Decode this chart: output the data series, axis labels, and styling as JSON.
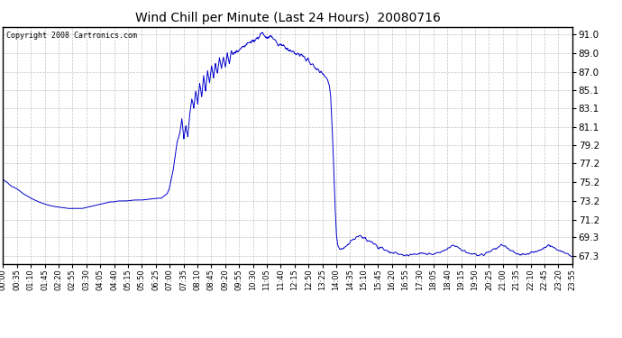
{
  "title": "Wind Chill per Minute (Last 24 Hours)  20080716",
  "copyright_text": "Copyright 2008 Cartronics.com",
  "line_color": "#0000cc",
  "background_color": "#ffffff",
  "grid_color": "#aaaaaa",
  "yticks": [
    67.3,
    69.3,
    71.2,
    73.2,
    75.2,
    77.2,
    79.2,
    81.1,
    83.1,
    85.1,
    87.0,
    89.0,
    91.0
  ],
  "ymin": 66.5,
  "ymax": 91.8,
  "xtick_labels": [
    "00:00",
    "00:35",
    "01:10",
    "01:45",
    "02:20",
    "02:55",
    "03:30",
    "04:05",
    "04:40",
    "05:15",
    "05:50",
    "06:25",
    "07:00",
    "07:35",
    "08:10",
    "08:45",
    "09:20",
    "09:55",
    "10:30",
    "11:05",
    "11:40",
    "12:15",
    "12:50",
    "13:25",
    "14:00",
    "14:35",
    "15:10",
    "15:45",
    "16:20",
    "16:55",
    "17:30",
    "18:05",
    "18:40",
    "19:15",
    "19:50",
    "20:25",
    "21:00",
    "21:35",
    "22:10",
    "22:45",
    "23:20",
    "23:55"
  ],
  "key_points": [
    [
      0,
      75.5
    ],
    [
      10,
      75.2
    ],
    [
      20,
      74.8
    ],
    [
      35,
      74.5
    ],
    [
      50,
      74.0
    ],
    [
      70,
      73.5
    ],
    [
      90,
      73.1
    ],
    [
      110,
      72.8
    ],
    [
      130,
      72.6
    ],
    [
      150,
      72.5
    ],
    [
      165,
      72.4
    ],
    [
      180,
      72.4
    ],
    [
      200,
      72.4
    ],
    [
      210,
      72.5
    ],
    [
      220,
      72.6
    ],
    [
      230,
      72.7
    ],
    [
      240,
      72.8
    ],
    [
      250,
      72.9
    ],
    [
      260,
      73.0
    ],
    [
      270,
      73.1
    ],
    [
      280,
      73.1
    ],
    [
      290,
      73.2
    ],
    [
      310,
      73.2
    ],
    [
      330,
      73.3
    ],
    [
      350,
      73.3
    ],
    [
      370,
      73.4
    ],
    [
      390,
      73.5
    ],
    [
      400,
      73.5
    ],
    [
      415,
      74.0
    ],
    [
      420,
      74.5
    ],
    [
      430,
      76.5
    ],
    [
      440,
      79.5
    ],
    [
      447,
      80.5
    ],
    [
      452,
      82.0
    ],
    [
      457,
      79.8
    ],
    [
      462,
      81.5
    ],
    [
      467,
      80.0
    ],
    [
      472,
      82.5
    ],
    [
      477,
      84.0
    ],
    [
      482,
      83.0
    ],
    [
      487,
      85.0
    ],
    [
      492,
      83.5
    ],
    [
      497,
      86.0
    ],
    [
      502,
      84.5
    ],
    [
      507,
      86.5
    ],
    [
      512,
      85.0
    ],
    [
      517,
      87.0
    ],
    [
      522,
      85.8
    ],
    [
      527,
      87.5
    ],
    [
      532,
      86.5
    ],
    [
      537,
      88.0
    ],
    [
      542,
      87.0
    ],
    [
      547,
      88.5
    ],
    [
      552,
      87.2
    ],
    [
      557,
      88.8
    ],
    [
      562,
      87.5
    ],
    [
      567,
      89.0
    ],
    [
      572,
      88.0
    ],
    [
      577,
      89.2
    ],
    [
      585,
      89.0
    ],
    [
      600,
      89.5
    ],
    [
      615,
      90.0
    ],
    [
      630,
      90.3
    ],
    [
      645,
      90.6
    ],
    [
      655,
      91.2
    ],
    [
      660,
      91.0
    ],
    [
      670,
      90.8
    ],
    [
      680,
      90.6
    ],
    [
      690,
      90.3
    ],
    [
      700,
      90.0
    ],
    [
      710,
      89.8
    ],
    [
      720,
      89.5
    ],
    [
      730,
      89.2
    ],
    [
      740,
      89.0
    ],
    [
      750,
      88.8
    ],
    [
      760,
      88.5
    ],
    [
      770,
      88.2
    ],
    [
      780,
      87.8
    ],
    [
      790,
      87.5
    ],
    [
      800,
      87.0
    ],
    [
      810,
      86.8
    ],
    [
      815,
      86.5
    ],
    [
      820,
      86.2
    ],
    [
      825,
      85.5
    ],
    [
      828,
      84.5
    ],
    [
      831,
      82.0
    ],
    [
      834,
      79.0
    ],
    [
      837,
      75.5
    ],
    [
      840,
      72.0
    ],
    [
      843,
      69.5
    ],
    [
      846,
      68.5
    ],
    [
      849,
      68.2
    ],
    [
      852,
      68.0
    ],
    [
      860,
      68.2
    ],
    [
      870,
      68.5
    ],
    [
      880,
      69.0
    ],
    [
      890,
      69.3
    ],
    [
      900,
      69.5
    ],
    [
      910,
      69.3
    ],
    [
      920,
      69.0
    ],
    [
      930,
      68.8
    ],
    [
      940,
      68.5
    ],
    [
      950,
      68.3
    ],
    [
      960,
      68.1
    ],
    [
      970,
      67.9
    ],
    [
      980,
      67.7
    ],
    [
      990,
      67.6
    ],
    [
      1000,
      67.5
    ],
    [
      1020,
      67.4
    ],
    [
      1040,
      67.5
    ],
    [
      1060,
      67.6
    ],
    [
      1080,
      67.5
    ],
    [
      1100,
      67.6
    ],
    [
      1110,
      67.8
    ],
    [
      1120,
      68.0
    ],
    [
      1130,
      68.3
    ],
    [
      1140,
      68.5
    ],
    [
      1150,
      68.2
    ],
    [
      1160,
      68.0
    ],
    [
      1170,
      67.8
    ],
    [
      1180,
      67.6
    ],
    [
      1190,
      67.5
    ],
    [
      1200,
      67.4
    ],
    [
      1210,
      67.5
    ],
    [
      1220,
      67.6
    ],
    [
      1230,
      67.8
    ],
    [
      1240,
      68.0
    ],
    [
      1250,
      68.2
    ],
    [
      1260,
      68.5
    ],
    [
      1270,
      68.3
    ],
    [
      1280,
      68.0
    ],
    [
      1290,
      67.8
    ],
    [
      1300,
      67.6
    ],
    [
      1310,
      67.5
    ],
    [
      1320,
      67.5
    ],
    [
      1330,
      67.6
    ],
    [
      1340,
      67.7
    ],
    [
      1350,
      67.8
    ],
    [
      1360,
      68.0
    ],
    [
      1370,
      68.2
    ],
    [
      1380,
      68.5
    ],
    [
      1390,
      68.3
    ],
    [
      1400,
      68.0
    ],
    [
      1410,
      67.8
    ],
    [
      1420,
      67.6
    ],
    [
      1430,
      67.5
    ],
    [
      1439,
      67.3
    ]
  ]
}
